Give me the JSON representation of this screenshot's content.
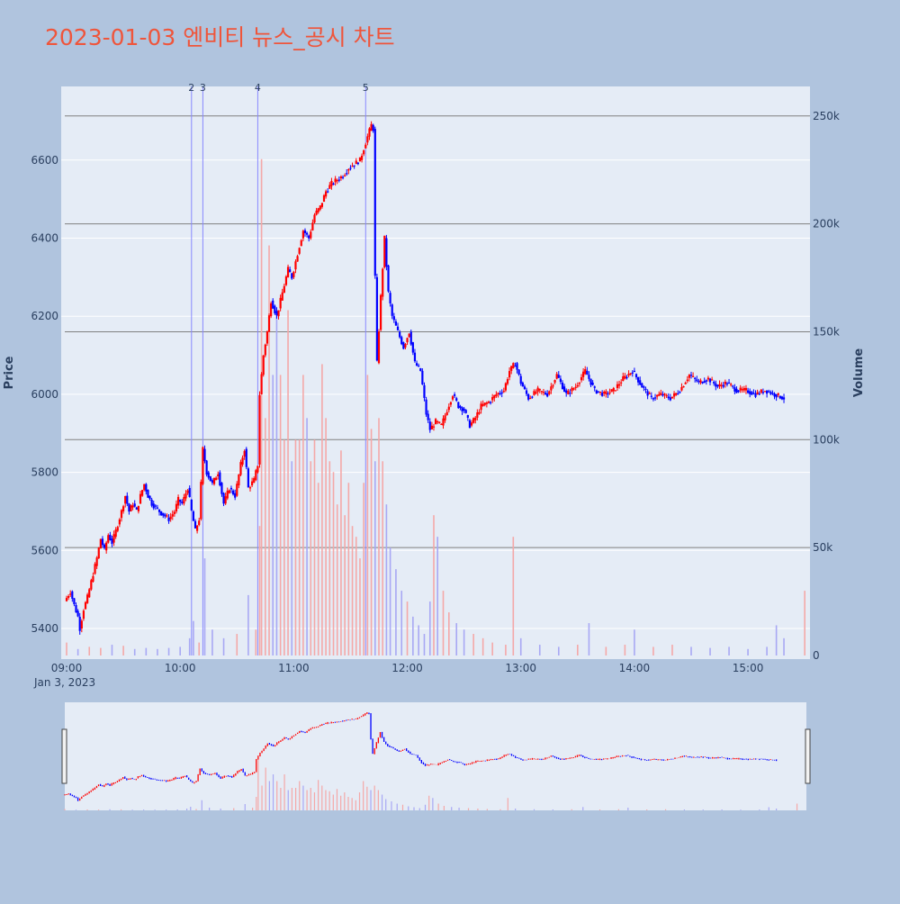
{
  "title": "2023-01-03 엔비티 뉴스_공시 차트",
  "colors": {
    "page_bg": "#b0c4de",
    "plot_bg": "#e5ecf6",
    "title": "#ef553b",
    "up": "#ff0000",
    "down": "#0000ff",
    "up_volume": "#f4a8a8",
    "down_volume": "#a8a8f4",
    "news_line": "#8888ff",
    "volume_grid": "#808080",
    "price_grid": "#ffffff",
    "tick_text": "#2a3f5f"
  },
  "chart_data": {
    "type": "candlestick",
    "date": "Jan 3, 2023",
    "price_axis": {
      "label": "Price",
      "range": [
        5330,
        6730
      ],
      "ticks": [
        5400,
        5600,
        5800,
        6000,
        6200,
        6400,
        6600
      ]
    },
    "volume_axis": {
      "label": "Volume",
      "range": [
        0,
        262500
      ],
      "ticks": [
        0,
        50000,
        100000,
        150000,
        200000,
        250000
      ],
      "tick_labels": [
        "0",
        "50k",
        "100k",
        "150k",
        "200k",
        "250k"
      ]
    },
    "time_axis": {
      "range": [
        "09:00",
        "15:30"
      ],
      "ticks": [
        "09:00",
        "10:00",
        "11:00",
        "12:00",
        "13:00",
        "14:00",
        "15:00"
      ]
    },
    "news_markers": [
      {
        "label": "2",
        "time": "10:06"
      },
      {
        "label": "3",
        "time": "10:12"
      },
      {
        "label": "4",
        "time": "10:41"
      },
      {
        "label": "5",
        "time": "11:38"
      }
    ],
    "price_path": [
      [
        "09:00",
        5470
      ],
      [
        "09:03",
        5495
      ],
      [
        "09:05",
        5460
      ],
      [
        "09:07",
        5430
      ],
      [
        "09:08",
        5400
      ],
      [
        "09:10",
        5450
      ],
      [
        "09:12",
        5480
      ],
      [
        "09:15",
        5540
      ],
      [
        "09:17",
        5580
      ],
      [
        "09:19",
        5630
      ],
      [
        "09:21",
        5600
      ],
      [
        "09:23",
        5640
      ],
      [
        "09:25",
        5620
      ],
      [
        "09:27",
        5650
      ],
      [
        "09:30",
        5700
      ],
      [
        "09:32",
        5740
      ],
      [
        "09:34",
        5700
      ],
      [
        "09:36",
        5720
      ],
      [
        "09:38",
        5700
      ],
      [
        "09:40",
        5740
      ],
      [
        "09:42",
        5770
      ],
      [
        "09:44",
        5740
      ],
      [
        "09:46",
        5720
      ],
      [
        "09:50",
        5700
      ],
      [
        "09:55",
        5680
      ],
      [
        "09:58",
        5700
      ],
      [
        "10:00",
        5730
      ],
      [
        "10:02",
        5720
      ],
      [
        "10:05",
        5760
      ],
      [
        "10:07",
        5700
      ],
      [
        "10:09",
        5650
      ],
      [
        "10:11",
        5680
      ],
      [
        "10:13",
        5860
      ],
      [
        "10:15",
        5800
      ],
      [
        "10:18",
        5770
      ],
      [
        "10:21",
        5800
      ],
      [
        "10:24",
        5720
      ],
      [
        "10:27",
        5760
      ],
      [
        "10:30",
        5740
      ],
      [
        "10:33",
        5820
      ],
      [
        "10:35",
        5860
      ],
      [
        "10:37",
        5760
      ],
      [
        "10:40",
        5780
      ],
      [
        "10:42",
        5820
      ],
      [
        "10:43",
        6000
      ],
      [
        "10:45",
        6100
      ],
      [
        "10:47",
        6160
      ],
      [
        "10:49",
        6240
      ],
      [
        "10:52",
        6200
      ],
      [
        "10:55",
        6260
      ],
      [
        "10:58",
        6320
      ],
      [
        "11:00",
        6300
      ],
      [
        "11:03",
        6360
      ],
      [
        "11:06",
        6420
      ],
      [
        "11:09",
        6400
      ],
      [
        "11:12",
        6460
      ],
      [
        "11:15",
        6480
      ],
      [
        "11:18",
        6520
      ],
      [
        "11:21",
        6540
      ],
      [
        "11:24",
        6550
      ],
      [
        "11:27",
        6560
      ],
      [
        "11:30",
        6580
      ],
      [
        "11:33",
        6590
      ],
      [
        "11:36",
        6600
      ],
      [
        "11:38",
        6630
      ],
      [
        "11:40",
        6660
      ],
      [
        "11:42",
        6690
      ],
      [
        "11:43",
        6680
      ],
      [
        "11:44",
        6300
      ],
      [
        "11:45",
        6080
      ],
      [
        "11:47",
        6250
      ],
      [
        "11:49",
        6400
      ],
      [
        "11:51",
        6260
      ],
      [
        "11:53",
        6200
      ],
      [
        "11:56",
        6160
      ],
      [
        "11:59",
        6120
      ],
      [
        "12:02",
        6160
      ],
      [
        "12:05",
        6080
      ],
      [
        "12:08",
        6060
      ],
      [
        "12:11",
        5950
      ],
      [
        "12:13",
        5910
      ],
      [
        "12:16",
        5930
      ],
      [
        "12:19",
        5920
      ],
      [
        "12:22",
        5960
      ],
      [
        "12:25",
        6000
      ],
      [
        "12:28",
        5970
      ],
      [
        "12:31",
        5960
      ],
      [
        "12:34",
        5920
      ],
      [
        "12:37",
        5940
      ],
      [
        "12:40",
        5970
      ],
      [
        "12:44",
        5980
      ],
      [
        "12:48",
        6000
      ],
      [
        "12:52",
        6010
      ],
      [
        "12:55",
        6060
      ],
      [
        "12:58",
        6080
      ],
      [
        "13:01",
        6030
      ],
      [
        "13:05",
        5990
      ],
      [
        "13:10",
        6010
      ],
      [
        "13:15",
        6000
      ],
      [
        "13:20",
        6050
      ],
      [
        "13:25",
        6000
      ],
      [
        "13:30",
        6020
      ],
      [
        "13:35",
        6060
      ],
      [
        "13:40",
        6010
      ],
      [
        "13:45",
        6000
      ],
      [
        "13:50",
        6010
      ],
      [
        "13:55",
        6040
      ],
      [
        "14:00",
        6060
      ],
      [
        "14:05",
        6020
      ],
      [
        "14:10",
        5990
      ],
      [
        "14:15",
        6000
      ],
      [
        "14:20",
        5990
      ],
      [
        "14:25",
        6010
      ],
      [
        "14:30",
        6050
      ],
      [
        "14:35",
        6030
      ],
      [
        "14:40",
        6040
      ],
      [
        "14:45",
        6020
      ],
      [
        "14:50",
        6030
      ],
      [
        "14:55",
        6010
      ],
      [
        "15:00",
        6010
      ],
      [
        "15:05",
        6000
      ],
      [
        "15:10",
        6010
      ],
      [
        "15:15",
        6000
      ],
      [
        "15:20",
        5990
      ]
    ],
    "volume_bars": [
      [
        "09:00",
        6000
      ],
      [
        "09:06",
        3000
      ],
      [
        "09:12",
        4000
      ],
      [
        "09:18",
        3500
      ],
      [
        "09:24",
        5000
      ],
      [
        "09:30",
        4500
      ],
      [
        "09:36",
        3000
      ],
      [
        "09:42",
        3500
      ],
      [
        "09:48",
        3000
      ],
      [
        "09:54",
        3500
      ],
      [
        "10:00",
        4000
      ],
      [
        "10:05",
        8000
      ],
      [
        "10:07",
        16000
      ],
      [
        "10:10",
        6000
      ],
      [
        "10:13",
        45000
      ],
      [
        "10:17",
        12000
      ],
      [
        "10:23",
        8000
      ],
      [
        "10:30",
        10000
      ],
      [
        "10:36",
        28000
      ],
      [
        "10:40",
        12000
      ],
      [
        "10:42",
        60000
      ],
      [
        "10:43",
        230000
      ],
      [
        "10:45",
        110000
      ],
      [
        "10:47",
        190000
      ],
      [
        "10:49",
        130000
      ],
      [
        "10:51",
        160000
      ],
      [
        "10:53",
        130000
      ],
      [
        "10:55",
        100000
      ],
      [
        "10:57",
        160000
      ],
      [
        "10:59",
        90000
      ],
      [
        "11:01",
        100000
      ],
      [
        "11:03",
        100000
      ],
      [
        "11:05",
        130000
      ],
      [
        "11:07",
        110000
      ],
      [
        "11:09",
        90000
      ],
      [
        "11:11",
        100000
      ],
      [
        "11:13",
        80000
      ],
      [
        "11:15",
        135000
      ],
      [
        "11:17",
        110000
      ],
      [
        "11:19",
        90000
      ],
      [
        "11:21",
        85000
      ],
      [
        "11:23",
        70000
      ],
      [
        "11:25",
        95000
      ],
      [
        "11:27",
        65000
      ],
      [
        "11:29",
        80000
      ],
      [
        "11:31",
        60000
      ],
      [
        "11:33",
        55000
      ],
      [
        "11:35",
        45000
      ],
      [
        "11:37",
        80000
      ],
      [
        "11:39",
        130000
      ],
      [
        "11:41",
        105000
      ],
      [
        "11:43",
        90000
      ],
      [
        "11:45",
        110000
      ],
      [
        "11:47",
        90000
      ],
      [
        "11:49",
        70000
      ],
      [
        "11:51",
        50000
      ],
      [
        "11:54",
        40000
      ],
      [
        "11:57",
        30000
      ],
      [
        "12:00",
        25000
      ],
      [
        "12:03",
        18000
      ],
      [
        "12:06",
        14000
      ],
      [
        "12:09",
        10000
      ],
      [
        "12:12",
        25000
      ],
      [
        "12:14",
        65000
      ],
      [
        "12:16",
        55000
      ],
      [
        "12:19",
        30000
      ],
      [
        "12:22",
        20000
      ],
      [
        "12:26",
        15000
      ],
      [
        "12:30",
        12000
      ],
      [
        "12:35",
        10000
      ],
      [
        "12:40",
        8000
      ],
      [
        "12:45",
        6000
      ],
      [
        "12:52",
        5000
      ],
      [
        "12:56",
        55000
      ],
      [
        "13:00",
        8000
      ],
      [
        "13:10",
        5000
      ],
      [
        "13:20",
        4000
      ],
      [
        "13:30",
        5000
      ],
      [
        "13:36",
        15000
      ],
      [
        "13:45",
        4000
      ],
      [
        "13:55",
        5000
      ],
      [
        "14:00",
        12000
      ],
      [
        "14:10",
        4000
      ],
      [
        "14:20",
        5000
      ],
      [
        "14:30",
        4000
      ],
      [
        "14:40",
        3500
      ],
      [
        "14:50",
        4000
      ],
      [
        "15:00",
        3000
      ],
      [
        "15:10",
        4000
      ],
      [
        "15:15",
        14000
      ],
      [
        "15:19",
        8000
      ],
      [
        "15:30",
        30000
      ]
    ]
  }
}
